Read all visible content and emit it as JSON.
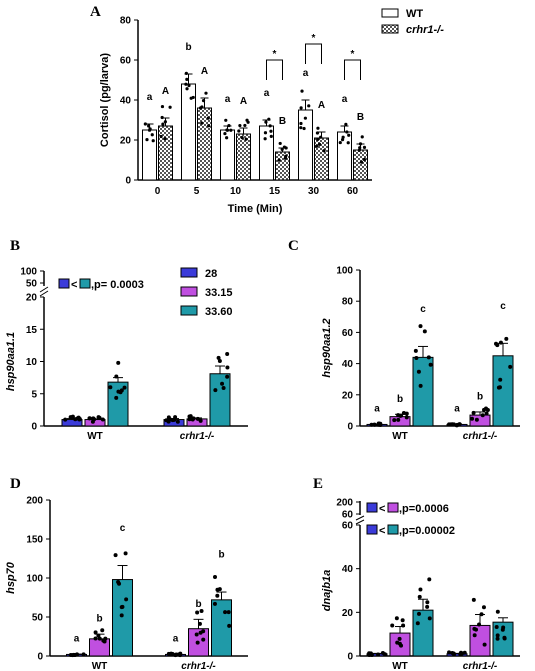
{
  "chart_data": [
    {
      "panel": "A",
      "type": "bar",
      "ylabel": "Cortisol (pg/larva)",
      "xlabel": "Time (Min)",
      "ylim": [
        0,
        80
      ],
      "yticks": [
        "0",
        "20",
        "40",
        "60",
        "80"
      ],
      "categories": [
        "0",
        "5",
        "10",
        "15",
        "30",
        "60"
      ],
      "series": [
        {
          "name": "WT",
          "values": [
            25,
            48,
            25,
            27,
            35,
            24
          ],
          "errors": [
            3,
            5,
            2,
            3,
            5,
            3
          ],
          "letters": [
            "a",
            "b",
            "a",
            "a",
            "a",
            "a"
          ]
        },
        {
          "name": "crhr1-/-",
          "values": [
            27,
            36,
            23,
            14,
            21,
            15
          ],
          "errors": [
            4,
            5,
            3,
            2,
            3,
            3
          ],
          "letters": [
            "A",
            "A",
            "A",
            "B",
            "A",
            "B"
          ]
        }
      ],
      "significance": [
        {
          "group": "15",
          "label": "*"
        },
        {
          "group": "30",
          "label": "*"
        },
        {
          "group": "60",
          "label": "*"
        }
      ],
      "legend_position": "top-right"
    },
    {
      "panel": "B",
      "type": "bar",
      "ylabel": "hsp90aa1.1",
      "ylim_lower": [
        0,
        20
      ],
      "ylim_upper": [
        50,
        100
      ],
      "yticks_lower": [
        "0",
        "5",
        "10",
        "15",
        "20"
      ],
      "yticks_upper": [
        "50",
        "100"
      ],
      "categories": [
        "WT",
        "crhr1-/-"
      ],
      "series": [
        {
          "name": "28",
          "values": [
            1.0,
            1.0
          ],
          "errors": [
            0.15,
            0.15
          ],
          "color": "#3b3bd9"
        },
        {
          "name": "33.15",
          "values": [
            1.0,
            1.1
          ],
          "errors": [
            0.1,
            0.15
          ],
          "color": "#c04fe0"
        },
        {
          "name": "33.60",
          "values": [
            6.8,
            8.1
          ],
          "errors": [
            0.7,
            1.2
          ],
          "color": "#1f9aa8"
        }
      ],
      "comparison": {
        "label": ",p= 0.0003"
      },
      "legend_position": "top-right"
    },
    {
      "panel": "C",
      "type": "bar",
      "ylabel": "hsp90aa1.2",
      "ylim": [
        0,
        100
      ],
      "yticks": [
        "0",
        "20",
        "40",
        "60",
        "80",
        "100"
      ],
      "categories": [
        "WT",
        "crhr1-/-"
      ],
      "series": [
        {
          "name": "28",
          "values": [
            1,
            1
          ],
          "errors": [
            0.3,
            0.3
          ],
          "letters": [
            "a",
            "a"
          ]
        },
        {
          "name": "33.15",
          "values": [
            6,
            7
          ],
          "errors": [
            1.5,
            2
          ],
          "letters": [
            "b",
            "b"
          ]
        },
        {
          "name": "33.60",
          "values": [
            44,
            45
          ],
          "errors": [
            7,
            8
          ],
          "letters": [
            "c",
            "c"
          ]
        }
      ]
    },
    {
      "panel": "D",
      "type": "bar",
      "ylabel": "hsp70",
      "ylim": [
        0,
        200
      ],
      "yticks": [
        "0",
        "50",
        "100",
        "150",
        "200"
      ],
      "categories": [
        "WT",
        "crhr1-/-"
      ],
      "series": [
        {
          "name": "28",
          "values": [
            2,
            2
          ],
          "errors": [
            0.5,
            0.5
          ],
          "letters": [
            "a",
            "a"
          ]
        },
        {
          "name": "33.15",
          "values": [
            22,
            35
          ],
          "errors": [
            6,
            12
          ],
          "letters": [
            "b",
            "b"
          ]
        },
        {
          "name": "33.60",
          "values": [
            98,
            72
          ],
          "errors": [
            18,
            10
          ],
          "letters": [
            "c",
            "b"
          ]
        }
      ]
    },
    {
      "panel": "E",
      "type": "bar",
      "ylabel": "dnajb1a",
      "ylim_lower": [
        0,
        60
      ],
      "ylim_upper": [
        60,
        200
      ],
      "yticks_lower": [
        "0",
        "20",
        "40",
        "60"
      ],
      "yticks_upper": [
        "60",
        "200"
      ],
      "categories": [
        "WT",
        "crhr1-/-"
      ],
      "series": [
        {
          "name": "28",
          "values": [
            1,
            1
          ],
          "errors": [
            0.2,
            0.2
          ]
        },
        {
          "name": "33.15",
          "values": [
            10.5,
            14
          ],
          "errors": [
            3,
            5
          ]
        },
        {
          "name": "33.60",
          "values": [
            21,
            15.5
          ],
          "errors": [
            5,
            2
          ]
        }
      ],
      "comparisons": [
        {
          "label": ",p=0.0006"
        },
        {
          "label": ",p=0.00002"
        }
      ]
    }
  ],
  "colors": {
    "c28": "#3b3bd9",
    "c3315": "#c04fe0",
    "c3360": "#1f9aa8"
  }
}
